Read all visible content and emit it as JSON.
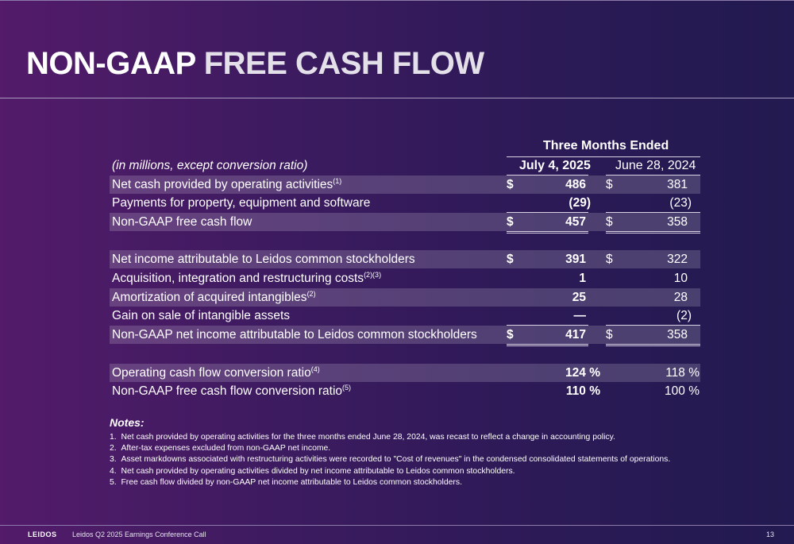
{
  "title": {
    "part1": "NON-GAAP",
    "part2": "FREE CASH FLOW"
  },
  "table": {
    "units": "(in millions, except conversion ratio)",
    "group_header": "Three Months Ended",
    "col1_header": "July 4, 2025",
    "col2_header": "June 28, 2024",
    "rows": [
      {
        "label": "Net cash provided by operating activities",
        "sup": "(1)",
        "d1": "$",
        "v1": "486",
        "d2": "$",
        "v2": "381"
      },
      {
        "label": "Payments for property, equipment and software",
        "sup": "",
        "d1": "",
        "v1": "(29)",
        "d2": "",
        "v2": "(23)"
      },
      {
        "label": "Non-GAAP free cash flow",
        "sup": "",
        "d1": "$",
        "v1": "457",
        "d2": "$",
        "v2": "358"
      },
      {
        "label": "Net income attributable to Leidos common stockholders",
        "sup": "",
        "d1": "$",
        "v1": "391",
        "d2": "$",
        "v2": "322"
      },
      {
        "label": "Acquisition, integration and restructuring costs",
        "sup": "(2)(3)",
        "d1": "",
        "v1": "1",
        "d2": "",
        "v2": "10"
      },
      {
        "label": "Amortization of acquired intangibles",
        "sup": "(2)",
        "d1": "",
        "v1": "25",
        "d2": "",
        "v2": "28"
      },
      {
        "label": "Gain on sale of intangible assets",
        "sup": "",
        "d1": "",
        "v1": "—",
        "d2": "",
        "v2": "(2)"
      },
      {
        "label": "Non-GAAP net income attributable to Leidos common stockholders",
        "sup": "",
        "d1": "$",
        "v1": "417",
        "d2": "$",
        "v2": "358"
      },
      {
        "label": "Operating cash flow conversion ratio",
        "sup": "(4)",
        "d1": "",
        "v1": "124 %",
        "d2": "",
        "v2": "118 %"
      },
      {
        "label": "Non-GAAP free cash flow conversion ratio",
        "sup": "(5)",
        "d1": "",
        "v1": "110 %",
        "d2": "",
        "v2": "100 %"
      }
    ]
  },
  "notes": {
    "title": "Notes:",
    "items": [
      "1.  Net cash provided by operating activities for the three months ended June 28, 2024, was recast to reflect a change in accounting policy.",
      "2.  After-tax expenses excluded from non-GAAP net income.",
      "3.  Asset markdowns associated with restructuring activities were recorded to \"Cost of revenues\" in the condensed consolidated statements of operations.",
      "4.  Net cash provided by operating activities divided by net income attributable to Leidos common stockholders.",
      "5.  Free cash flow divided by non-GAAP net income attributable to Leidos common stockholders."
    ]
  },
  "footer": {
    "brand": "LEIDOS",
    "text": "Leidos Q2 2025 Earnings Conference Call",
    "page": "13"
  }
}
